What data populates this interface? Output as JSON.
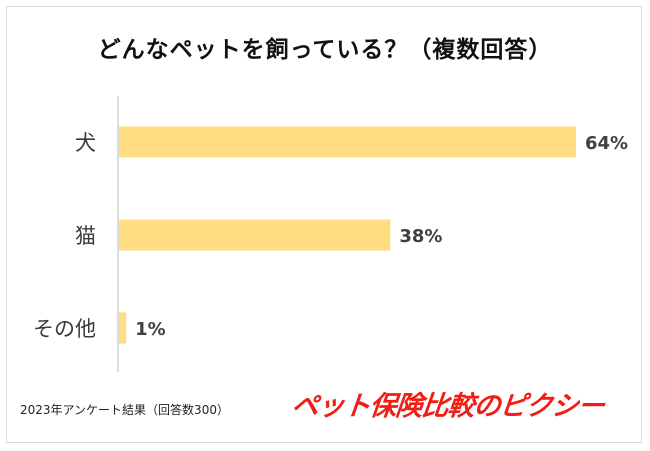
{
  "colors": {
    "bar": "#ffdd80",
    "axis": "#d0d0d0",
    "text": "#3a3a3a",
    "value_text": "#404040",
    "brand": "#f01e14"
  },
  "chart_data": {
    "type": "bar",
    "orientation": "horizontal",
    "title": "どんなペットを飼っている？（複数回答）",
    "categories": [
      "犬",
      "猫",
      "その他"
    ],
    "values": [
      64,
      38,
      1
    ],
    "value_labels": [
      "64%",
      "38%",
      "1%"
    ],
    "xlim": [
      0,
      64
    ],
    "grid": false,
    "legend": "none"
  },
  "footer": {
    "note": "2023年アンケート結果（回答数300）",
    "brand": "ペット保険比較のピクシー"
  }
}
